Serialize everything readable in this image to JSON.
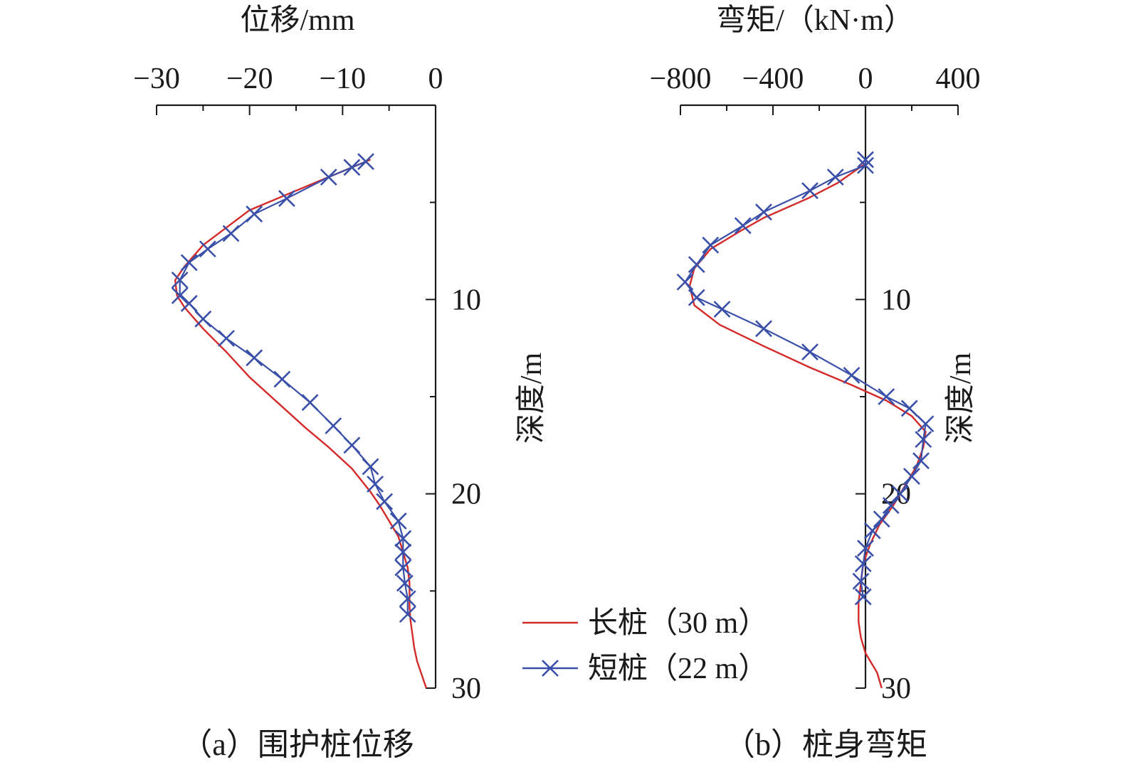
{
  "colors": {
    "long_pile": "#d42a2a",
    "short_pile": "#3a4fa8",
    "axis": "#1a1a1a"
  },
  "legend": {
    "position": "bottom-center",
    "long_label": "长桩（30 m）",
    "short_label": "短桩（22 m）",
    "short_marker_icon": "x-marker-icon"
  },
  "chart_data": [
    {
      "type": "line",
      "xlabel": "位移/mm",
      "ylabel": "深度/m",
      "caption": "（a）围护桩位移",
      "xlim": [
        -30,
        0
      ],
      "ylim": [
        0,
        30
      ],
      "y_inverted": true,
      "x_axis_side": "top",
      "y_axis_side": "right",
      "x_ticks": [
        -30,
        -20,
        -10,
        0
      ],
      "x_tick_labels": [
        "−30",
        "−20",
        "−10",
        "0"
      ],
      "y_ticks": [
        10,
        20,
        30
      ],
      "y_tick_labels": [
        "10",
        "20",
        "30"
      ],
      "grid": false,
      "series": [
        {
          "name": "长桩（30 m）",
          "marker": "none",
          "x": [
            -7,
            -8,
            -9,
            -11.5,
            -16,
            -20,
            -22.5,
            -25,
            -27,
            -28,
            -27.8,
            -27,
            -25,
            -22.5,
            -20,
            -17,
            -14,
            -11.5,
            -9,
            -7,
            -6,
            -5,
            -4,
            -3.5,
            -3,
            -2.8,
            -2.8,
            -2.8,
            -2.7,
            -2.5,
            -2.3,
            -2,
            -1.5,
            -1
          ],
          "y": [
            2.8,
            3,
            3.2,
            3.7,
            4.6,
            5.4,
            6.3,
            7.2,
            8.3,
            9,
            9.8,
            10.4,
            11.5,
            12.7,
            14,
            15.3,
            16.6,
            17.6,
            18.7,
            19.9,
            20.6,
            21.4,
            22.2,
            23,
            23.8,
            24.6,
            25.2,
            25.8,
            26.5,
            27.2,
            27.9,
            28.6,
            29.3,
            30
          ]
        },
        {
          "name": "短桩（22 m）",
          "marker": "x",
          "x": [
            -7.5,
            -9,
            -11.5,
            -16,
            -19.5,
            -22,
            -24.5,
            -26.5,
            -27.5,
            -27.5,
            -26.5,
            -25,
            -22.5,
            -19.5,
            -16.5,
            -13.5,
            -11,
            -9,
            -7,
            -6.5,
            -5.5,
            -4,
            -3.5,
            -3.5,
            -3.5,
            -3.3,
            -3,
            -3
          ],
          "y": [
            2.9,
            3.2,
            3.7,
            4.8,
            5.6,
            6.6,
            7.4,
            8.1,
            9,
            9.8,
            10.2,
            11,
            12,
            13,
            14.1,
            15.3,
            16.5,
            17.5,
            18.6,
            19.5,
            20.4,
            21.4,
            22.3,
            23,
            23.8,
            24.6,
            25.4,
            26.2
          ]
        }
      ]
    },
    {
      "type": "line",
      "xlabel": "弯矩/（kN·m）",
      "ylabel": "深度/m",
      "caption": "（b）桩身弯矩",
      "xlim": [
        -800,
        400
      ],
      "ylim": [
        0,
        30
      ],
      "y_inverted": true,
      "x_axis_side": "top",
      "y_axis_side": "x=0",
      "x_ticks": [
        -800,
        -400,
        0,
        400
      ],
      "x_tick_labels": [
        "−800",
        "−400",
        "0",
        "400"
      ],
      "y_ticks": [
        10,
        20,
        30
      ],
      "y_tick_labels": [
        "10",
        "20",
        "30"
      ],
      "grid": false,
      "series": [
        {
          "name": "长桩（30 m）",
          "marker": "none",
          "x": [
            0,
            -120,
            -250,
            -440,
            -530,
            -670,
            -740,
            -760,
            -740,
            -630,
            -440,
            -240,
            -60,
            90,
            200,
            260,
            250,
            220,
            170,
            120,
            60,
            20,
            -10,
            -20,
            -30,
            -30,
            -20,
            0,
            50,
            70
          ],
          "y": [
            3,
            4,
            4.8,
            5.8,
            6.4,
            7.4,
            8.4,
            9.3,
            10.3,
            11.3,
            12.4,
            13.5,
            14.4,
            15.2,
            16,
            16.8,
            17.6,
            18.6,
            19.6,
            20.6,
            21.6,
            22.6,
            23.6,
            24.6,
            25.6,
            26.6,
            27.4,
            28.2,
            29.2,
            30
          ]
        },
        {
          "name": "短桩（22 m）",
          "marker": "x",
          "x": [
            0,
            0,
            -130,
            -240,
            -440,
            -530,
            -670,
            -730,
            -780,
            -730,
            -620,
            -440,
            -240,
            -60,
            90,
            190,
            260,
            250,
            240,
            200,
            150,
            110,
            70,
            30,
            0,
            -10,
            -20,
            -10
          ],
          "y": [
            2.8,
            3.1,
            3.7,
            4.4,
            5.5,
            6.2,
            7.2,
            8.2,
            9.1,
            9.9,
            10.5,
            11.5,
            12.7,
            13.9,
            15,
            15.6,
            16.4,
            17.2,
            18.3,
            19.1,
            20,
            20.6,
            21.3,
            21.9,
            22.8,
            23.6,
            24.5,
            25.3
          ]
        }
      ]
    }
  ]
}
